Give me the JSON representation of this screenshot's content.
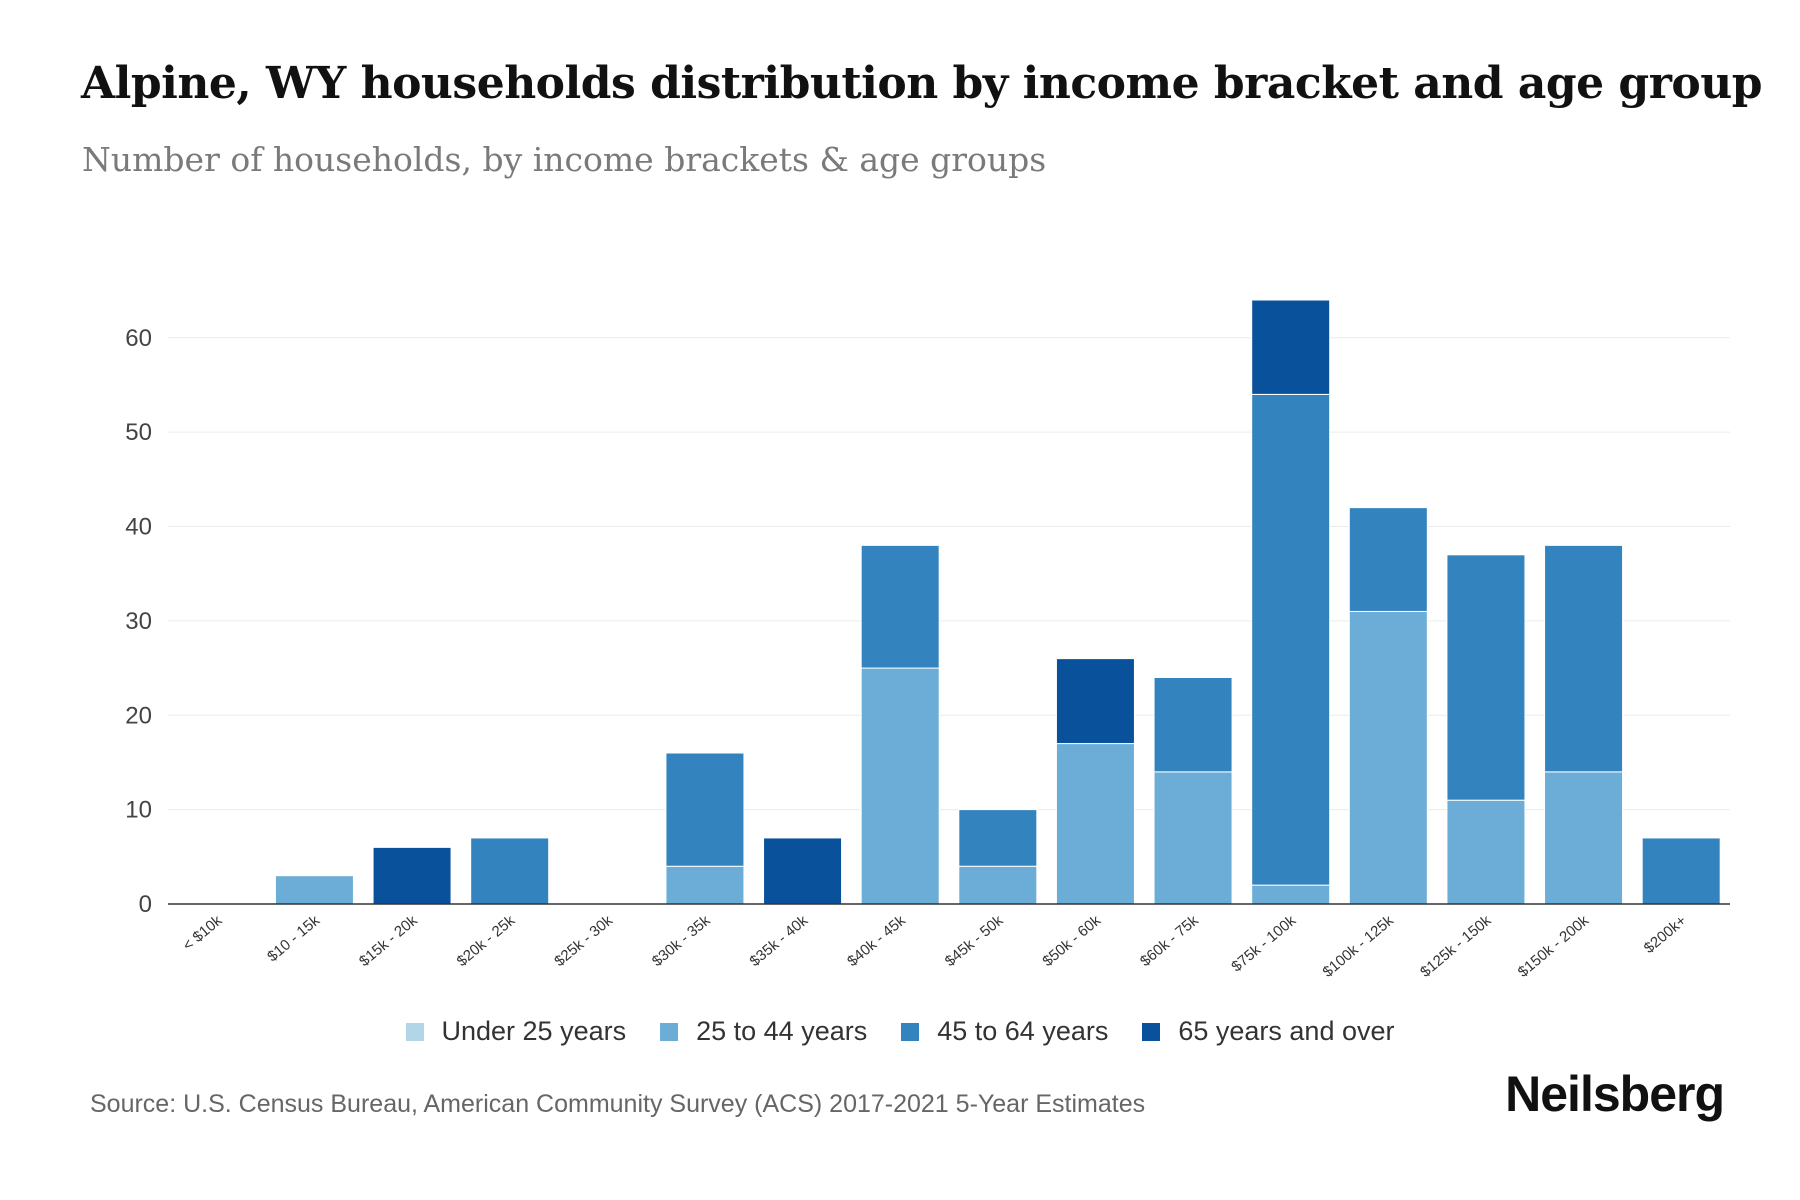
{
  "title": "Alpine, WY households distribution by income bracket and age group",
  "subtitle": "Number of households, by income brackets & age groups",
  "source": "Source: U.S. Census Bureau, American Community Survey (ACS) 2017-2021 5-Year Estimates",
  "brand": "Neilsberg",
  "colors": {
    "under_25": "#b3d5e8",
    "age_25_44": "#6badd6",
    "age_45_64": "#3383bf",
    "age_65_over": "#0a519c",
    "grid": "#ececec",
    "axis": "#333333"
  },
  "chart_data": {
    "type": "bar",
    "stacked": true,
    "title": "Alpine, WY households distribution by income bracket and age group",
    "xlabel": "",
    "ylabel": "",
    "ylim": [
      0,
      64
    ],
    "yticks": [
      0,
      10,
      20,
      30,
      40,
      50,
      60
    ],
    "grid": true,
    "legend_position": "bottom",
    "categories": [
      "< $10k",
      "$10 - 15k",
      "$15k - 20k",
      "$20k - 25k",
      "$25k - 30k",
      "$30k - 35k",
      "$35k - 40k",
      "$40k - 45k",
      "$45k - 50k",
      "$50k - 60k",
      "$60k - 75k",
      "$75k - 100k",
      "$100k - 125k",
      "$125k - 150k",
      "$150k - 200k",
      "$200k+"
    ],
    "series": [
      {
        "name": "Under 25 years",
        "color_key": "under_25",
        "values": [
          0,
          0,
          0,
          0,
          0,
          0,
          0,
          0,
          0,
          0,
          0,
          0,
          0,
          0,
          0,
          0
        ]
      },
      {
        "name": "25 to 44 years",
        "color_key": "age_25_44",
        "values": [
          0,
          3,
          0,
          0,
          0,
          4,
          0,
          25,
          4,
          17,
          14,
          2,
          31,
          11,
          14,
          0
        ]
      },
      {
        "name": "45 to 64 years",
        "color_key": "age_45_64",
        "values": [
          0,
          0,
          0,
          7,
          0,
          12,
          0,
          13,
          6,
          0,
          10,
          52,
          11,
          26,
          24,
          7
        ]
      },
      {
        "name": "65 years and over",
        "color_key": "age_65_over",
        "values": [
          0,
          0,
          6,
          0,
          0,
          0,
          7,
          0,
          0,
          9,
          0,
          10,
          0,
          0,
          0,
          0
        ]
      }
    ]
  }
}
